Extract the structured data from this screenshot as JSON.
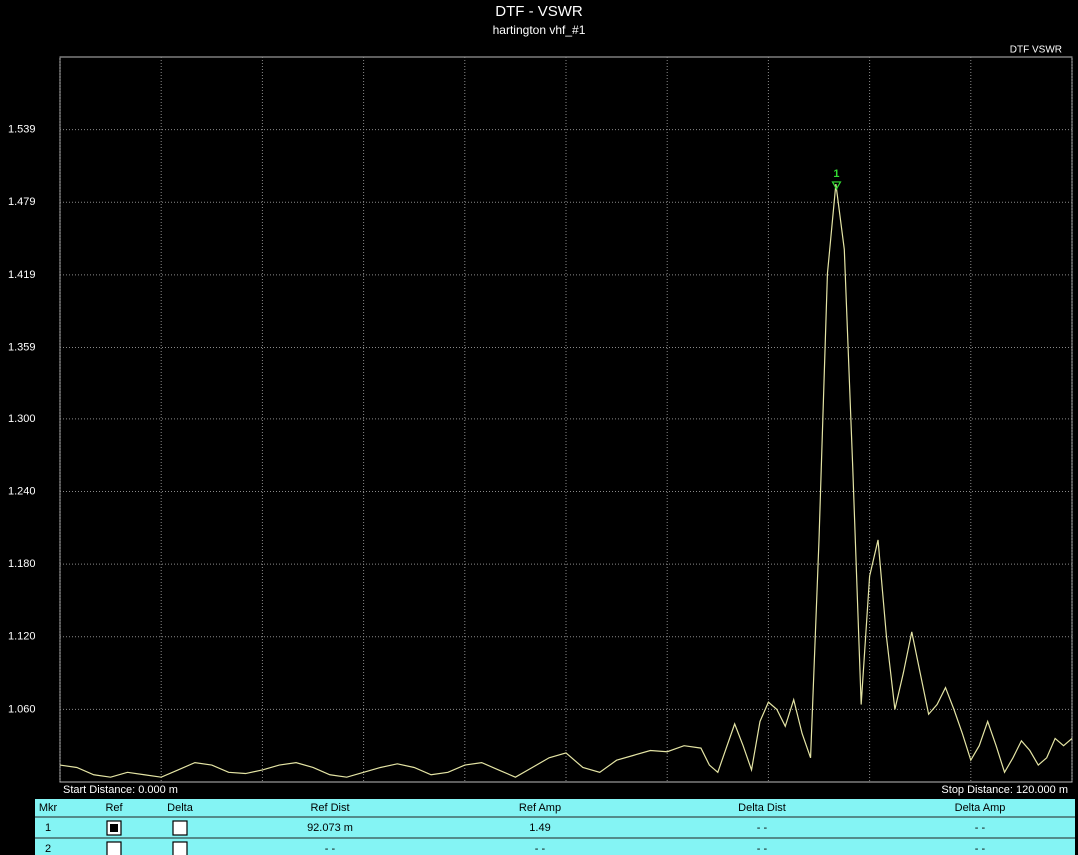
{
  "chart_data": {
    "type": "line",
    "title": "DTF - VSWR",
    "subtitle": "hartington vhf_#1",
    "start_label": "Start Distance: 0.000 m",
    "stop_label": "Stop Distance: 120.000 m",
    "x": [
      0,
      2,
      4,
      6,
      8,
      10,
      12,
      14,
      16,
      18,
      20,
      22,
      24,
      26,
      28,
      30,
      32,
      34,
      36,
      38,
      40,
      42,
      44,
      46,
      48,
      50,
      52,
      54,
      56,
      58,
      60,
      62,
      64,
      66,
      68,
      70,
      72,
      74,
      76,
      77,
      78,
      80,
      81,
      82,
      83,
      84,
      85,
      86,
      87,
      88,
      89,
      90,
      91,
      92,
      93,
      94,
      95,
      96,
      97,
      98,
      99,
      100,
      101,
      102,
      103,
      104,
      105,
      106,
      107,
      108,
      109,
      110,
      111,
      112,
      113,
      114,
      115,
      116,
      117,
      118,
      119,
      120
    ],
    "series": [
      {
        "name": "DTF VSWR",
        "color": "#e4e4a4",
        "values": [
          1.014,
          1.012,
          1.006,
          1.004,
          1.008,
          1.006,
          1.004,
          1.01,
          1.016,
          1.014,
          1.008,
          1.007,
          1.01,
          1.014,
          1.016,
          1.012,
          1.006,
          1.004,
          1.008,
          1.012,
          1.015,
          1.012,
          1.006,
          1.008,
          1.014,
          1.016,
          1.01,
          1.004,
          1.012,
          1.02,
          1.024,
          1.012,
          1.008,
          1.018,
          1.022,
          1.026,
          1.025,
          1.03,
          1.028,
          1.014,
          1.008,
          1.048,
          1.03,
          1.01,
          1.05,
          1.066,
          1.06,
          1.046,
          1.068,
          1.04,
          1.02,
          1.2,
          1.42,
          1.494,
          1.44,
          1.26,
          1.064,
          1.17,
          1.2,
          1.12,
          1.06,
          1.09,
          1.124,
          1.09,
          1.056,
          1.064,
          1.078,
          1.06,
          1.04,
          1.018,
          1.03,
          1.05,
          1.03,
          1.008,
          1.02,
          1.034,
          1.026,
          1.014,
          1.02,
          1.036,
          1.03,
          1.036
        ]
      }
    ],
    "xlim": [
      0,
      120
    ],
    "xticks": [
      0,
      12,
      24,
      36,
      48,
      60,
      72,
      84,
      96,
      108,
      120
    ],
    "ylim": [
      1.0,
      1.599
    ],
    "yticks": [
      {
        "value": 1.06,
        "label": "1.060"
      },
      {
        "value": 1.12,
        "label": "1.120"
      },
      {
        "value": 1.18,
        "label": "1.180"
      },
      {
        "value": 1.24,
        "label": "1.240"
      },
      {
        "value": 1.3,
        "label": "1.300"
      },
      1.359,
      1.419,
      1.479,
      1.539
    ],
    "grid": true,
    "markers": [
      {
        "label": "1",
        "x": 92.073,
        "y": 1.49,
        "color": "#33dd33"
      }
    ]
  },
  "marker_table": {
    "columns": [
      "Mkr",
      "Ref",
      "Delta",
      "Ref Dist",
      "Ref Amp",
      "Delta Dist",
      "Delta Amp"
    ],
    "rows": [
      {
        "mkr": "1",
        "ref": true,
        "delta": false,
        "ref_dist": "92.073 m",
        "ref_amp": "1.49",
        "delta_dist": "- -",
        "delta_amp": "- -"
      },
      {
        "mkr": "2",
        "ref": false,
        "delta": false,
        "ref_dist": "- -",
        "ref_amp": "- -",
        "delta_dist": "- -",
        "delta_amp": "- -"
      }
    ]
  }
}
